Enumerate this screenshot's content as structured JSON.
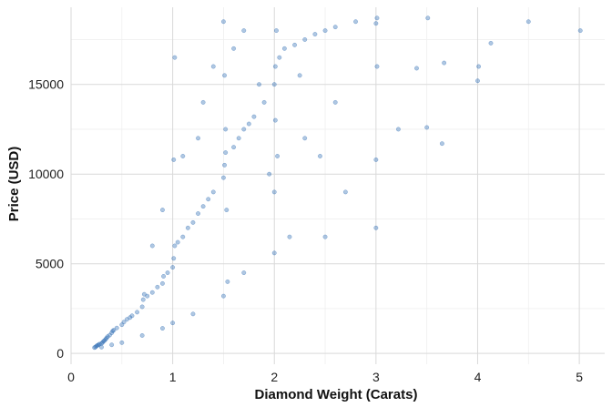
{
  "chart_data": {
    "type": "scatter",
    "title": "",
    "xlabel": "Diamond Weight (Carats)",
    "ylabel": "Price (USD)",
    "xlim": [
      0,
      5.25
    ],
    "ylim": [
      -600,
      19300
    ],
    "x_ticks": [
      0,
      1,
      2,
      3,
      4,
      5
    ],
    "y_ticks": [
      0,
      5000,
      10000,
      15000
    ],
    "x_tick_labels": [
      "0",
      "1",
      "2",
      "3",
      "4",
      "5"
    ],
    "y_tick_labels": [
      "0",
      "5000",
      "10000",
      "15000"
    ],
    "grid": true,
    "legend": "none",
    "point_color": "#2e6db4",
    "point_opacity": 0.38,
    "series": [
      {
        "points": [
          [
            0.23,
            326
          ],
          [
            0.24,
            354
          ],
          [
            0.25,
            410
          ],
          [
            0.26,
            450
          ],
          [
            0.27,
            480
          ],
          [
            0.28,
            520
          ],
          [
            0.3,
            560
          ],
          [
            0.31,
            610
          ],
          [
            0.32,
            680
          ],
          [
            0.33,
            720
          ],
          [
            0.34,
            790
          ],
          [
            0.35,
            860
          ],
          [
            0.36,
            940
          ],
          [
            0.38,
            1020
          ],
          [
            0.4,
            1150
          ],
          [
            0.41,
            1250
          ],
          [
            0.42,
            1300
          ],
          [
            0.45,
            1420
          ],
          [
            0.5,
            1600
          ],
          [
            0.52,
            1750
          ],
          [
            0.55,
            1900
          ],
          [
            0.58,
            2000
          ],
          [
            0.6,
            2100
          ],
          [
            0.65,
            2300
          ],
          [
            0.7,
            2600
          ],
          [
            0.71,
            3000
          ],
          [
            0.72,
            3300
          ],
          [
            0.75,
            3200
          ],
          [
            0.8,
            3400
          ],
          [
            0.85,
            3700
          ],
          [
            0.9,
            3900
          ],
          [
            0.91,
            4300
          ],
          [
            0.95,
            4500
          ],
          [
            1.0,
            4800
          ],
          [
            1.01,
            5300
          ],
          [
            1.02,
            6000
          ],
          [
            1.05,
            6200
          ],
          [
            1.1,
            6500
          ],
          [
            1.15,
            7000
          ],
          [
            1.2,
            7300
          ],
          [
            1.25,
            7800
          ],
          [
            1.3,
            8200
          ],
          [
            1.35,
            8600
          ],
          [
            1.4,
            9000
          ],
          [
            1.5,
            9800
          ],
          [
            1.51,
            10500
          ],
          [
            1.52,
            11200
          ],
          [
            1.6,
            11500
          ],
          [
            1.65,
            12000
          ],
          [
            1.7,
            12500
          ],
          [
            1.75,
            12800
          ],
          [
            1.8,
            13200
          ],
          [
            1.9,
            14000
          ],
          [
            2.0,
            15000
          ],
          [
            2.01,
            16000
          ],
          [
            2.05,
            16500
          ],
          [
            2.1,
            17000
          ],
          [
            2.2,
            17200
          ],
          [
            2.3,
            17500
          ],
          [
            2.4,
            17800
          ],
          [
            2.5,
            18000
          ],
          [
            2.6,
            18200
          ],
          [
            2.8,
            18500
          ],
          [
            3.0,
            18400
          ],
          [
            3.01,
            16000
          ],
          [
            3.01,
            18700
          ],
          [
            3.22,
            12500
          ],
          [
            3.4,
            15900
          ],
          [
            3.5,
            12600
          ],
          [
            3.51,
            18700
          ],
          [
            3.65,
            11700
          ],
          [
            3.67,
            16200
          ],
          [
            4.0,
            15200
          ],
          [
            4.01,
            16000
          ],
          [
            4.13,
            17300
          ],
          [
            4.5,
            18500
          ],
          [
            5.01,
            18000
          ],
          [
            0.3,
            350
          ],
          [
            0.4,
            480
          ],
          [
            0.5,
            600
          ],
          [
            0.7,
            1000
          ],
          [
            0.9,
            1400
          ],
          [
            1.0,
            1700
          ],
          [
            1.2,
            2200
          ],
          [
            1.5,
            3200
          ],
          [
            1.7,
            4500
          ],
          [
            2.0,
            5600
          ],
          [
            2.5,
            6500
          ],
          [
            3.0,
            7000
          ],
          [
            1.01,
            10800
          ],
          [
            1.02,
            16500
          ],
          [
            1.5,
            18500
          ],
          [
            1.51,
            15500
          ],
          [
            1.52,
            12500
          ],
          [
            1.53,
            8000
          ],
          [
            1.54,
            4000
          ],
          [
            2.0,
            9000
          ],
          [
            2.01,
            13000
          ],
          [
            2.02,
            18000
          ],
          [
            2.03,
            11000
          ],
          [
            1.25,
            12000
          ],
          [
            1.3,
            14000
          ],
          [
            1.4,
            16000
          ],
          [
            1.6,
            17000
          ],
          [
            0.8,
            6000
          ],
          [
            0.9,
            8000
          ],
          [
            1.1,
            11000
          ],
          [
            1.7,
            18000
          ],
          [
            2.3,
            12000
          ],
          [
            2.6,
            14000
          ],
          [
            2.7,
            9000
          ],
          [
            3.0,
            10800
          ],
          [
            2.25,
            15500
          ],
          [
            1.85,
            15000
          ],
          [
            1.95,
            10000
          ],
          [
            2.15,
            6500
          ],
          [
            2.45,
            11000
          ]
        ]
      }
    ]
  }
}
